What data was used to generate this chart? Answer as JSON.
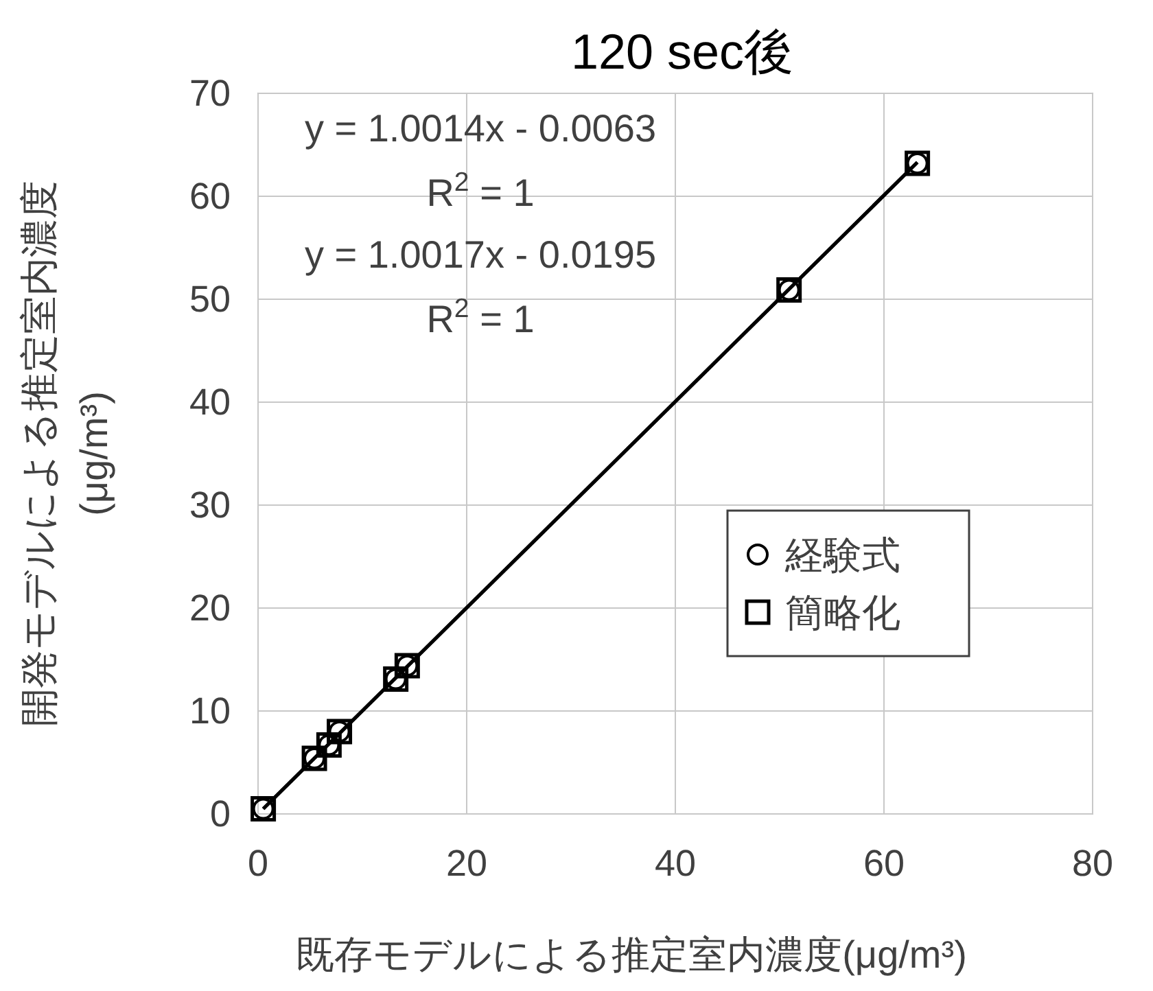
{
  "chart_data": {
    "type": "scatter",
    "title": "120 sec後",
    "xlabel": "既存モデルによる推定室内濃度(μg/m³)",
    "ylabel": "開発モデルによる推定室内濃度\n(μg/m³)",
    "annotations": [
      "y = 1.0014x - 0.0063",
      "R$^{2}$ = 1",
      "y = 1.0017x - 0.0195",
      "R$^{2}$ = 1"
    ],
    "series": [
      {
        "name": "経験式",
        "type": "scatter",
        "marker": "circle",
        "color": "#000000",
        "x": [
          0.5,
          5.4,
          6.8,
          7.8,
          13.2,
          14.3,
          50.9,
          63.2
        ],
        "values": [
          0.5,
          5.4,
          6.7,
          8.0,
          13.1,
          14.4,
          50.9,
          63.2
        ]
      },
      {
        "name": "簡略化",
        "type": "scatter",
        "marker": "square",
        "color": "#000000",
        "x": [
          0.5,
          5.4,
          6.8,
          7.8,
          13.2,
          14.3,
          50.9,
          63.2
        ],
        "values": [
          0.5,
          5.4,
          6.7,
          8.0,
          13.1,
          14.4,
          50.9,
          63.2
        ]
      },
      {
        "type": "line",
        "color": "#000000",
        "x": [
          0.5,
          63.2
        ],
        "values": [
          0.5,
          63.3
        ]
      },
      {
        "type": "line",
        "color": "#000000",
        "x": [
          0.5,
          63.2
        ],
        "values": [
          0.5,
          63.3
        ]
      }
    ],
    "xlim": [
      0,
      80
    ],
    "ylim": [
      0,
      70
    ],
    "xticks": [
      0,
      20,
      40,
      60,
      80
    ],
    "yticks": [
      0,
      10,
      20,
      30,
      40,
      50,
      60,
      70
    ],
    "grid": true,
    "legend": "right"
  }
}
